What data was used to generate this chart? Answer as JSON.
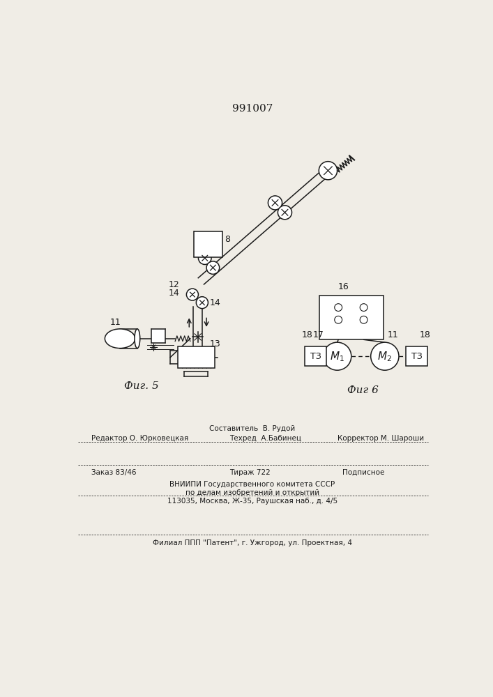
{
  "patent_number": "991007",
  "fig5_label": "Фиг. 5",
  "fig6_label": "Фиг 6",
  "bg_color": "#f0ede6",
  "line_color": "#1a1a1a",
  "bottom_texts": {
    "sostavitel": "Составитель  В. Рудой",
    "redaktor": "Редактор О. Юрковецкая",
    "tehred": "Техред  А.Бабинец",
    "korrektor": "Корректор М. Шароши",
    "zakaz": "Заказ 83/46",
    "tirazh": "Тираж 722",
    "podpisnoe": "Подписное",
    "vniip1": "ВНИИПИ Государственного комитета СССР",
    "vniip2": "по делам изобретений и открытий",
    "vniip3": "113035, Москва, Ж-35, Раушская наб., д. 4/5",
    "filial": "Филиал ППП \"Патент\", г. Ужгород, ул. Проектная, 4"
  }
}
